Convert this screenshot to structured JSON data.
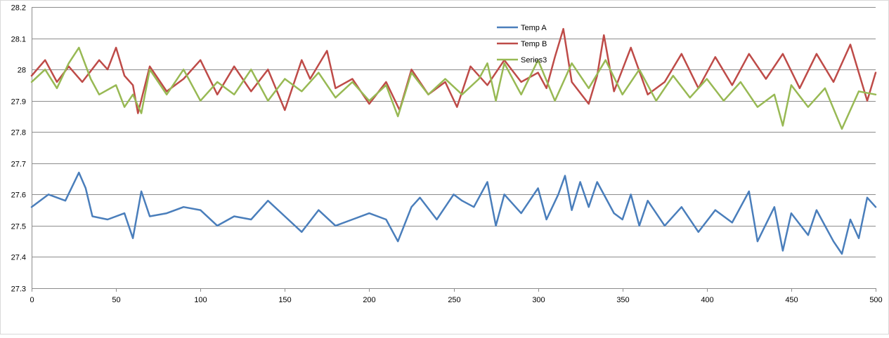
{
  "chart_data": {
    "type": "line",
    "title": "",
    "xlabel": "",
    "ylabel": "",
    "xlim": [
      0,
      500
    ],
    "ylim": [
      27.3,
      28.2
    ],
    "x_ticks": [
      0,
      50,
      100,
      150,
      200,
      250,
      300,
      350,
      400,
      450,
      500
    ],
    "x_tick_labels": [
      "0",
      "50",
      "100",
      "150",
      "200",
      "250",
      "300",
      "350",
      "400",
      "450",
      "500"
    ],
    "y_ticks": [
      27.3,
      27.4,
      27.5,
      27.6,
      27.7,
      27.8,
      27.9,
      28.0,
      28.1,
      28.2
    ],
    "y_tick_labels": [
      "27.3",
      "27.4",
      "27.5",
      "27.6",
      "27.7",
      "27.8",
      "27.9",
      "28",
      "28.1",
      "28.2"
    ],
    "grid": "horizontal",
    "legend_position": "top-center",
    "series": [
      {
        "name": "Temp A",
        "color": "#4a7ebb",
        "x": [
          0,
          10,
          20,
          28,
          32,
          36,
          45,
          55,
          60,
          65,
          70,
          80,
          90,
          100,
          110,
          120,
          130,
          140,
          150,
          160,
          170,
          180,
          190,
          200,
          210,
          217,
          225,
          230,
          240,
          250,
          255,
          262,
          270,
          275,
          280,
          290,
          300,
          305,
          312,
          316,
          320,
          325,
          330,
          335,
          345,
          350,
          355,
          360,
          365,
          375,
          385,
          395,
          405,
          415,
          425,
          430,
          440,
          445,
          450,
          460,
          465,
          470,
          475,
          480,
          485,
          490,
          495,
          500
        ],
        "y": [
          27.56,
          27.6,
          27.58,
          27.67,
          27.62,
          27.53,
          27.52,
          27.54,
          27.46,
          27.61,
          27.53,
          27.54,
          27.56,
          27.55,
          27.5,
          27.53,
          27.52,
          27.58,
          27.53,
          27.48,
          27.55,
          27.5,
          27.52,
          27.54,
          27.52,
          27.45,
          27.56,
          27.59,
          27.52,
          27.6,
          27.58,
          27.56,
          27.64,
          27.5,
          27.6,
          27.54,
          27.62,
          27.52,
          27.6,
          27.66,
          27.55,
          27.64,
          27.56,
          27.64,
          27.54,
          27.52,
          27.6,
          27.5,
          27.58,
          27.5,
          27.56,
          27.48,
          27.55,
          27.51,
          27.61,
          27.45,
          27.56,
          27.42,
          27.54,
          27.47,
          27.55,
          27.5,
          27.45,
          27.41,
          27.52,
          27.46,
          27.59,
          27.56
        ]
      },
      {
        "name": "Temp B",
        "color": "#be4b48",
        "x": [
          0,
          8,
          15,
          22,
          30,
          40,
          45,
          50,
          55,
          60,
          63,
          70,
          80,
          90,
          100,
          110,
          120,
          130,
          140,
          150,
          160,
          165,
          175,
          180,
          190,
          200,
          210,
          218,
          225,
          235,
          245,
          252,
          260,
          270,
          280,
          290,
          300,
          305,
          310,
          315,
          320,
          330,
          335,
          339,
          345,
          355,
          365,
          375,
          385,
          395,
          405,
          415,
          425,
          435,
          445,
          455,
          465,
          475,
          485,
          495,
          500
        ],
        "y": [
          27.98,
          28.03,
          27.96,
          28.01,
          27.96,
          28.03,
          28.0,
          28.07,
          27.98,
          27.95,
          27.86,
          28.01,
          27.93,
          27.97,
          28.03,
          27.92,
          28.01,
          27.93,
          28.0,
          27.87,
          28.03,
          27.97,
          28.06,
          27.94,
          27.97,
          27.89,
          27.96,
          27.87,
          28.0,
          27.92,
          27.96,
          27.88,
          28.01,
          27.95,
          28.03,
          27.96,
          27.99,
          27.94,
          28.04,
          28.13,
          27.96,
          27.89,
          27.98,
          28.11,
          27.93,
          28.07,
          27.92,
          27.96,
          28.05,
          27.94,
          28.04,
          27.95,
          28.05,
          27.97,
          28.05,
          27.94,
          28.05,
          27.96,
          28.08,
          27.9,
          27.99
        ]
      },
      {
        "name": "Series3",
        "color": "#98b954",
        "x": [
          0,
          8,
          15,
          22,
          28,
          35,
          40,
          50,
          55,
          60,
          65,
          70,
          80,
          90,
          100,
          110,
          120,
          130,
          140,
          150,
          160,
          170,
          180,
          190,
          200,
          210,
          217,
          225,
          235,
          245,
          255,
          265,
          270,
          275,
          280,
          290,
          300,
          310,
          320,
          330,
          340,
          350,
          360,
          370,
          380,
          390,
          400,
          410,
          420,
          430,
          440,
          445,
          450,
          460,
          470,
          480,
          490,
          500
        ],
        "y": [
          27.96,
          28.0,
          27.94,
          28.02,
          28.07,
          27.97,
          27.92,
          27.95,
          27.88,
          27.92,
          27.86,
          28.0,
          27.92,
          28.0,
          27.9,
          27.96,
          27.92,
          28.0,
          27.9,
          27.97,
          27.93,
          27.99,
          27.91,
          27.96,
          27.9,
          27.95,
          27.85,
          27.99,
          27.92,
          27.97,
          27.92,
          27.97,
          28.02,
          27.9,
          28.02,
          27.92,
          28.03,
          27.9,
          28.02,
          27.94,
          28.03,
          27.92,
          28.0,
          27.9,
          27.98,
          27.91,
          27.97,
          27.9,
          27.96,
          27.88,
          27.92,
          27.82,
          27.95,
          27.88,
          27.94,
          27.81,
          27.93,
          27.92
        ]
      }
    ]
  }
}
